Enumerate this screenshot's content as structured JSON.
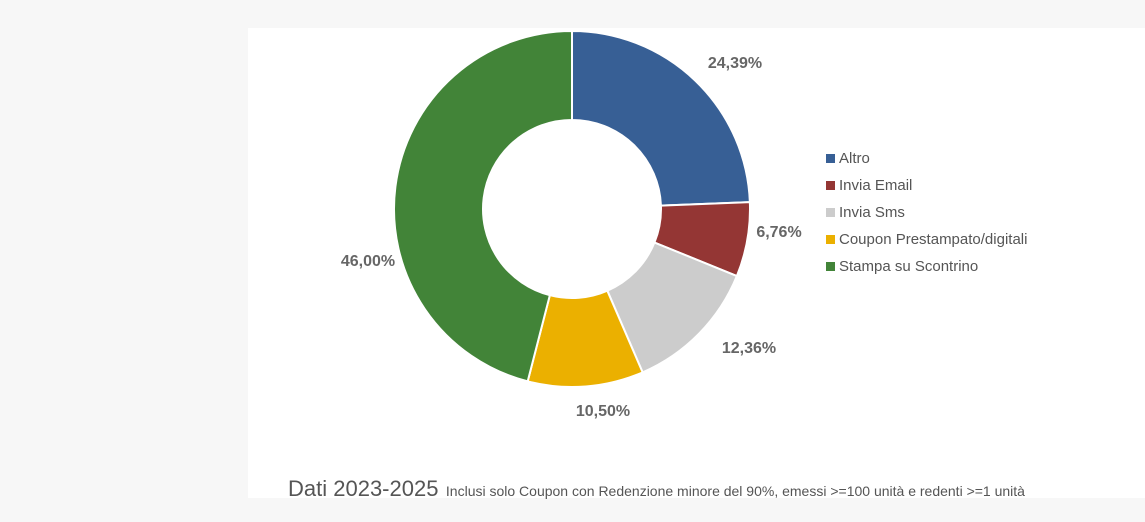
{
  "chart_data": {
    "type": "pie",
    "variant": "donut",
    "categories": [
      "Altro",
      "Invia Email",
      "Invia Sms",
      "Coupon Prestampato/digitali",
      "Stampa su Scontrino"
    ],
    "values": [
      24.39,
      6.76,
      12.36,
      10.5,
      46.0
    ],
    "value_labels": [
      "24,39%",
      "6,76%",
      "12,36%",
      "10,50%",
      "46,00%"
    ],
    "colors": [
      "#375f95",
      "#943634",
      "#cccccc",
      "#ebb000",
      "#428438"
    ],
    "legend_position": "right",
    "title": "",
    "subtitle": ""
  },
  "footer": {
    "title": "Dati 2023-2025",
    "note": "Inclusi solo Coupon con Redenzione minore del 90%, emessi >=100 unità e redenti >=1 unità"
  }
}
